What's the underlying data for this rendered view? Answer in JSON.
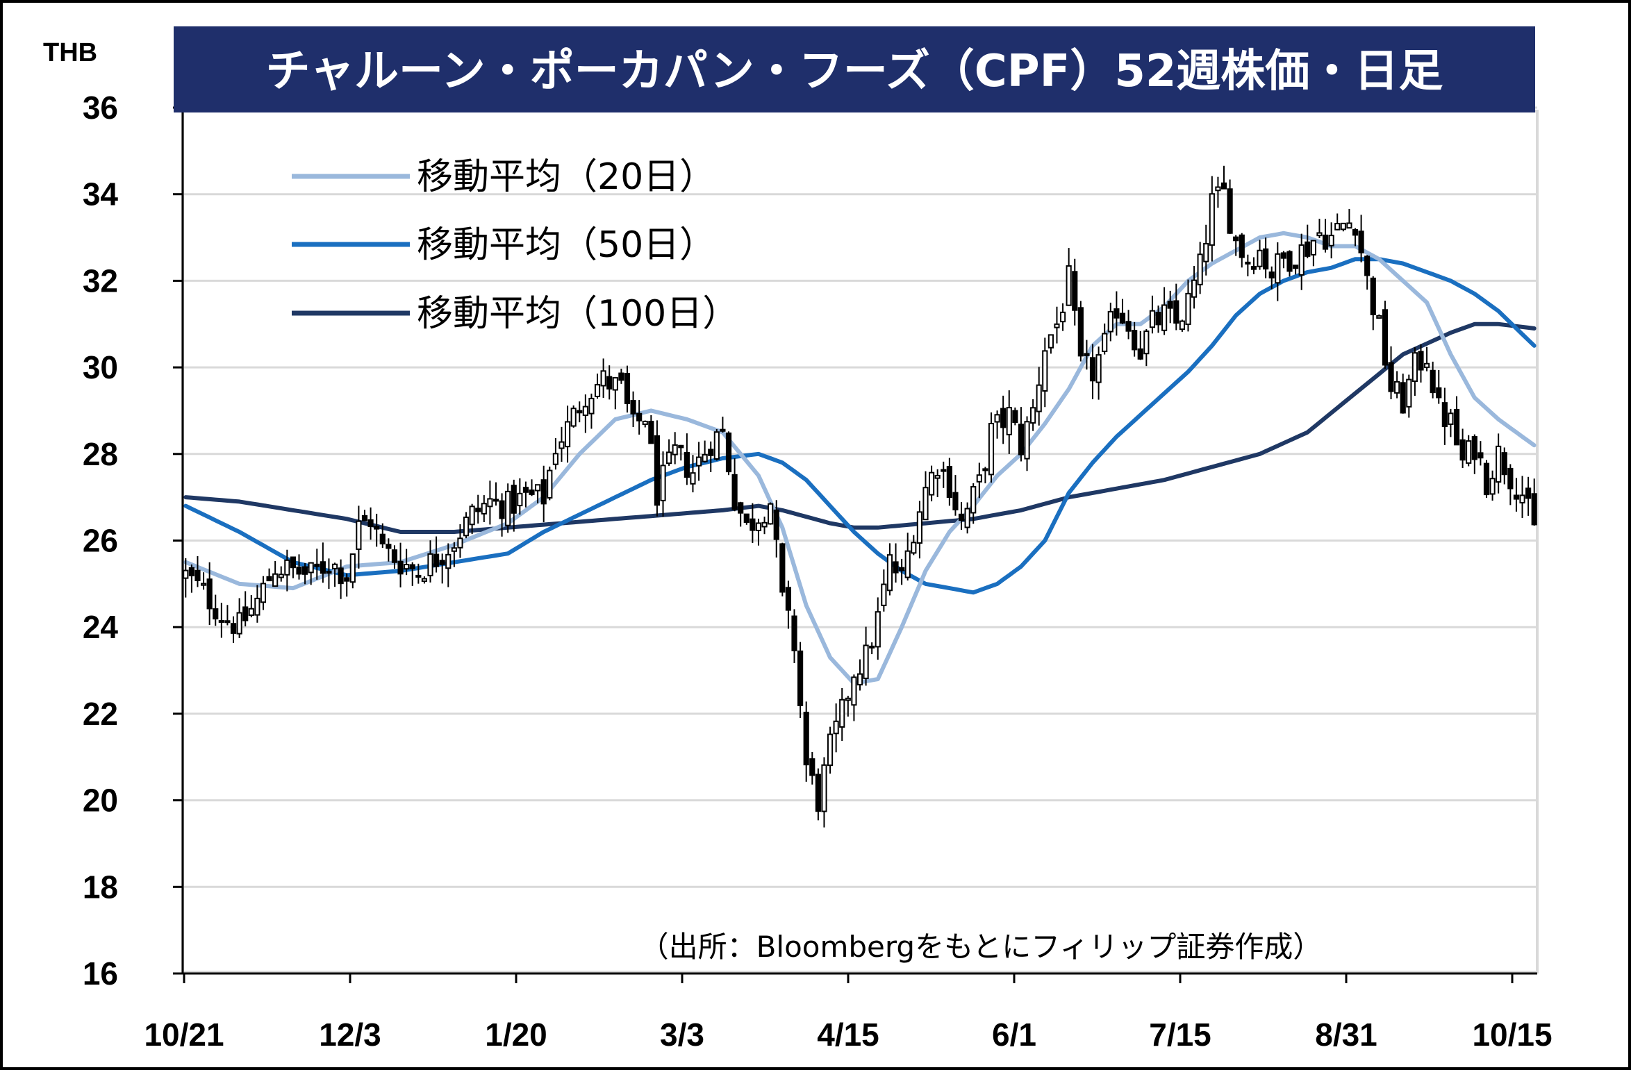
{
  "chart_data": {
    "type": "candlestick",
    "title": "チャルーン・ポーカパン・フーズ（CPF）52週株価・日足",
    "y_unit": "THB",
    "ylim": [
      16,
      36
    ],
    "y_ticks": [
      "36",
      "34",
      "32",
      "30",
      "28",
      "26",
      "24",
      "22",
      "20",
      "18",
      "16"
    ],
    "x_ticks": [
      "10/21",
      "12/3",
      "1/20",
      "3/3",
      "4/15",
      "6/1",
      "7/15",
      "8/31",
      "10/15"
    ],
    "grid": true,
    "legend_position": "top-left",
    "source": "（出所：Bloombergをもとにフィリップ証券作成）",
    "colors": {
      "title_bg": "#1f2f6b",
      "candle_up": "#ffffff",
      "candle_down": "#000000",
      "ma20": "#9ab8dc",
      "ma50": "#1a6fc0",
      "ma100": "#1f3864",
      "grid": "#d9d9d9",
      "frame": "#000000"
    },
    "price_anchors": [
      [
        0,
        25.2
      ],
      [
        3,
        24.8
      ],
      [
        6,
        24.3
      ],
      [
        9,
        24.0
      ],
      [
        12,
        24.6
      ],
      [
        15,
        25.4
      ],
      [
        18,
        25.3
      ],
      [
        21,
        25.2
      ],
      [
        24,
        25.5
      ],
      [
        27,
        25.2
      ],
      [
        29,
        26.3
      ],
      [
        31,
        26.5
      ],
      [
        33,
        25.8
      ],
      [
        36,
        25.5
      ],
      [
        39,
        25.3
      ],
      [
        42,
        25.6
      ],
      [
        45,
        26.0
      ],
      [
        48,
        26.6
      ],
      [
        51,
        26.9
      ],
      [
        54,
        26.8
      ],
      [
        57,
        27.0
      ],
      [
        60,
        27.0
      ],
      [
        62,
        28.2
      ],
      [
        64,
        28.6
      ],
      [
        67,
        29.4
      ],
      [
        70,
        29.7
      ],
      [
        73,
        29.5
      ],
      [
        75,
        28.6
      ],
      [
        77,
        28.9
      ],
      [
        79,
        27.1
      ],
      [
        82,
        28.0
      ],
      [
        85,
        27.6
      ],
      [
        88,
        28.3
      ],
      [
        90,
        28.5
      ],
      [
        92,
        27.0
      ],
      [
        94,
        26.3
      ],
      [
        96,
        26.6
      ],
      [
        98,
        26.9
      ],
      [
        100,
        24.6
      ],
      [
        102,
        23.6
      ],
      [
        104,
        20.8
      ],
      [
        106,
        20.0
      ],
      [
        108,
        21.2
      ],
      [
        110,
        22.0
      ],
      [
        112,
        23.0
      ],
      [
        114,
        23.3
      ],
      [
        116,
        24.2
      ],
      [
        118,
        25.5
      ],
      [
        120,
        25.1
      ],
      [
        122,
        26.3
      ],
      [
        124,
        27.2
      ],
      [
        126,
        27.8
      ],
      [
        128,
        27.3
      ],
      [
        130,
        26.4
      ],
      [
        133,
        27.3
      ],
      [
        135,
        28.5
      ],
      [
        138,
        28.9
      ],
      [
        140,
        28.2
      ],
      [
        142,
        29.0
      ],
      [
        144,
        30.5
      ],
      [
        146,
        31.0
      ],
      [
        148,
        32.0
      ],
      [
        150,
        30.0
      ],
      [
        152,
        29.9
      ],
      [
        154,
        30.5
      ],
      [
        156,
        31.4
      ],
      [
        158,
        31.0
      ],
      [
        160,
        30.4
      ],
      [
        162,
        31.0
      ],
      [
        164,
        31.2
      ],
      [
        166,
        31.0
      ],
      [
        168,
        31.5
      ],
      [
        170,
        32.3
      ],
      [
        172,
        33.8
      ],
      [
        174,
        34.0
      ],
      [
        176,
        32.9
      ],
      [
        178,
        32.5
      ],
      [
        180,
        32.7
      ],
      [
        182,
        32.2
      ],
      [
        184,
        32.5
      ],
      [
        186,
        32.6
      ],
      [
        188,
        32.8
      ],
      [
        190,
        33.1
      ],
      [
        192,
        33.0
      ],
      [
        194,
        33.3
      ],
      [
        196,
        33.4
      ],
      [
        198,
        32.0
      ],
      [
        200,
        30.9
      ],
      [
        202,
        29.5
      ],
      [
        204,
        29.2
      ],
      [
        206,
        30.0
      ],
      [
        208,
        30.3
      ],
      [
        210,
        29.0
      ],
      [
        212,
        28.7
      ],
      [
        214,
        27.8
      ],
      [
        216,
        28.2
      ],
      [
        218,
        27.4
      ],
      [
        220,
        28.0
      ],
      [
        222,
        27.5
      ],
      [
        224,
        27.1
      ],
      [
        226,
        26.2
      ]
    ],
    "ma20_anchors": [
      [
        0,
        25.5
      ],
      [
        9,
        25.0
      ],
      [
        18,
        24.9
      ],
      [
        27,
        25.4
      ],
      [
        36,
        25.5
      ],
      [
        45,
        25.9
      ],
      [
        54,
        26.4
      ],
      [
        60,
        27.0
      ],
      [
        66,
        28.0
      ],
      [
        72,
        28.8
      ],
      [
        78,
        29.0
      ],
      [
        84,
        28.8
      ],
      [
        90,
        28.5
      ],
      [
        96,
        27.5
      ],
      [
        100,
        26.3
      ],
      [
        104,
        24.5
      ],
      [
        108,
        23.3
      ],
      [
        112,
        22.7
      ],
      [
        116,
        22.8
      ],
      [
        120,
        24.0
      ],
      [
        124,
        25.3
      ],
      [
        128,
        26.2
      ],
      [
        132,
        26.8
      ],
      [
        136,
        27.5
      ],
      [
        140,
        28.0
      ],
      [
        144,
        28.7
      ],
      [
        148,
        29.5
      ],
      [
        152,
        30.5
      ],
      [
        156,
        31.0
      ],
      [
        160,
        31.0
      ],
      [
        164,
        31.4
      ],
      [
        168,
        32.0
      ],
      [
        172,
        32.4
      ],
      [
        176,
        32.7
      ],
      [
        180,
        33.0
      ],
      [
        184,
        33.1
      ],
      [
        188,
        33.0
      ],
      [
        192,
        32.8
      ],
      [
        196,
        32.8
      ],
      [
        200,
        32.5
      ],
      [
        204,
        32.0
      ],
      [
        208,
        31.5
      ],
      [
        212,
        30.3
      ],
      [
        216,
        29.3
      ],
      [
        220,
        28.8
      ],
      [
        226,
        28.2
      ]
    ],
    "ma50_anchors": [
      [
        0,
        26.8
      ],
      [
        9,
        26.2
      ],
      [
        18,
        25.5
      ],
      [
        27,
        25.2
      ],
      [
        36,
        25.3
      ],
      [
        45,
        25.5
      ],
      [
        54,
        25.7
      ],
      [
        60,
        26.2
      ],
      [
        66,
        26.6
      ],
      [
        72,
        27.0
      ],
      [
        78,
        27.4
      ],
      [
        84,
        27.7
      ],
      [
        90,
        27.9
      ],
      [
        96,
        28.0
      ],
      [
        100,
        27.8
      ],
      [
        104,
        27.4
      ],
      [
        108,
        26.8
      ],
      [
        112,
        26.2
      ],
      [
        116,
        25.7
      ],
      [
        120,
        25.3
      ],
      [
        124,
        25.0
      ],
      [
        128,
        24.9
      ],
      [
        132,
        24.8
      ],
      [
        136,
        25.0
      ],
      [
        140,
        25.4
      ],
      [
        144,
        26.0
      ],
      [
        148,
        27.1
      ],
      [
        152,
        27.8
      ],
      [
        156,
        28.4
      ],
      [
        160,
        28.9
      ],
      [
        164,
        29.4
      ],
      [
        168,
        29.9
      ],
      [
        172,
        30.5
      ],
      [
        176,
        31.2
      ],
      [
        180,
        31.7
      ],
      [
        184,
        32.0
      ],
      [
        188,
        32.2
      ],
      [
        192,
        32.3
      ],
      [
        196,
        32.5
      ],
      [
        200,
        32.5
      ],
      [
        204,
        32.4
      ],
      [
        208,
        32.2
      ],
      [
        212,
        32.0
      ],
      [
        216,
        31.7
      ],
      [
        220,
        31.3
      ],
      [
        226,
        30.5
      ]
    ],
    "ma100_anchors": [
      [
        0,
        27.0
      ],
      [
        9,
        26.9
      ],
      [
        18,
        26.7
      ],
      [
        27,
        26.5
      ],
      [
        36,
        26.2
      ],
      [
        45,
        26.2
      ],
      [
        54,
        26.3
      ],
      [
        63,
        26.4
      ],
      [
        72,
        26.5
      ],
      [
        81,
        26.6
      ],
      [
        90,
        26.7
      ],
      [
        96,
        26.8
      ],
      [
        100,
        26.7
      ],
      [
        108,
        26.4
      ],
      [
        112,
        26.3
      ],
      [
        116,
        26.3
      ],
      [
        124,
        26.4
      ],
      [
        132,
        26.5
      ],
      [
        140,
        26.7
      ],
      [
        148,
        27.0
      ],
      [
        156,
        27.2
      ],
      [
        164,
        27.4
      ],
      [
        172,
        27.7
      ],
      [
        180,
        28.0
      ],
      [
        188,
        28.5
      ],
      [
        196,
        29.4
      ],
      [
        204,
        30.3
      ],
      [
        212,
        30.8
      ],
      [
        216,
        31.0
      ],
      [
        220,
        31.0
      ],
      [
        226,
        30.9
      ]
    ]
  },
  "legend": [
    {
      "label": "移動平均（20日）",
      "color": "#9ab8dc"
    },
    {
      "label": "移動平均（50日）",
      "color": "#1a6fc0"
    },
    {
      "label": "移動平均（100日）",
      "color": "#1f3864"
    }
  ]
}
